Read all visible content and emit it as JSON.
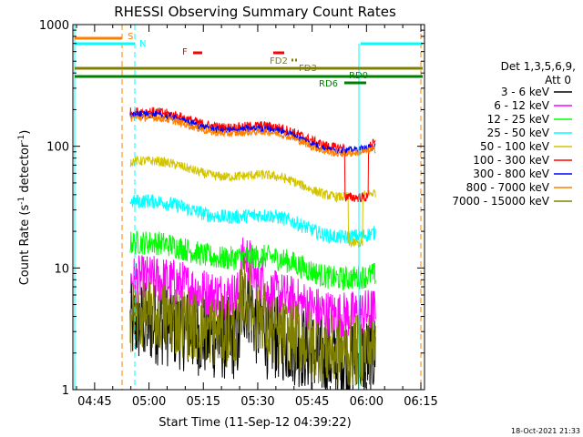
{
  "chart_data": {
    "type": "line",
    "title": "RHESSI Observing Summary Count Rates",
    "xlabel": "Start Time (11-Sep-12 04:39:22)",
    "ylabel": "Count Rate (s⁻¹ detector⁻¹)",
    "ylabel_parts": {
      "main": "Count Rate (s",
      "exp1": "-1",
      "mid": " detector",
      "exp2": "-1",
      "end": ")"
    },
    "y_scale": "log",
    "ylim": [
      1,
      1000
    ],
    "xlim_minutes": [
      4,
      101
    ],
    "x_tick_labels": [
      "04:45",
      "05:00",
      "05:15",
      "05:30",
      "05:45",
      "06:00",
      "06:15"
    ],
    "x_tick_minutes": [
      10,
      25,
      40,
      55,
      70,
      85,
      100
    ],
    "y_tick_labels": [
      "1",
      "10",
      "100",
      "1000"
    ],
    "y_tick_values": [
      1,
      10,
      100,
      1000
    ],
    "legend": {
      "header1": "Det 1,3,5,6,9,",
      "header2": "Att 0",
      "position": "right"
    },
    "series": [
      {
        "name": "3 - 6 keV",
        "color": "#000000",
        "base": 3.5,
        "noise": 0.35
      },
      {
        "name": "6 - 12 keV",
        "color": "#ff00ff",
        "base": 8,
        "noise": 0.2
      },
      {
        "name": "12 - 25 keV",
        "color": "#00ff00",
        "base": 16,
        "noise": 0.1
      },
      {
        "name": "25 - 50 keV",
        "color": "#00ffff",
        "base": 35,
        "noise": 0.06
      },
      {
        "name": "50 - 100 keV",
        "color": "#d4c400",
        "base": 75,
        "noise": 0.04
      },
      {
        "name": "100 - 300 keV",
        "color": "#ff0000",
        "base": 190,
        "noise": 0.04
      },
      {
        "name": "300 - 800 keV",
        "color": "#0000ff",
        "base": 180,
        "noise": 0.03
      },
      {
        "name": "800 - 7000 keV",
        "color": "#ff8000",
        "base": 170,
        "noise": 0.03
      },
      {
        "name": "7000 - 15000 keV",
        "color": "#808000",
        "base": 4,
        "noise": 0.3
      }
    ],
    "annotations": [
      {
        "label": "S",
        "color": "#ff8000"
      },
      {
        "label": "N",
        "color": "#00ffff"
      },
      {
        "label": "F",
        "color": "#ff0000"
      },
      {
        "label": "FD2",
        "color": "#808000"
      },
      {
        "label": "FD3",
        "color": "#808000"
      },
      {
        "label": "RD0",
        "color": "#008000"
      },
      {
        "label": "RD6",
        "color": "#008000"
      }
    ],
    "timestamp": "18-Oct-2021 21:33"
  }
}
